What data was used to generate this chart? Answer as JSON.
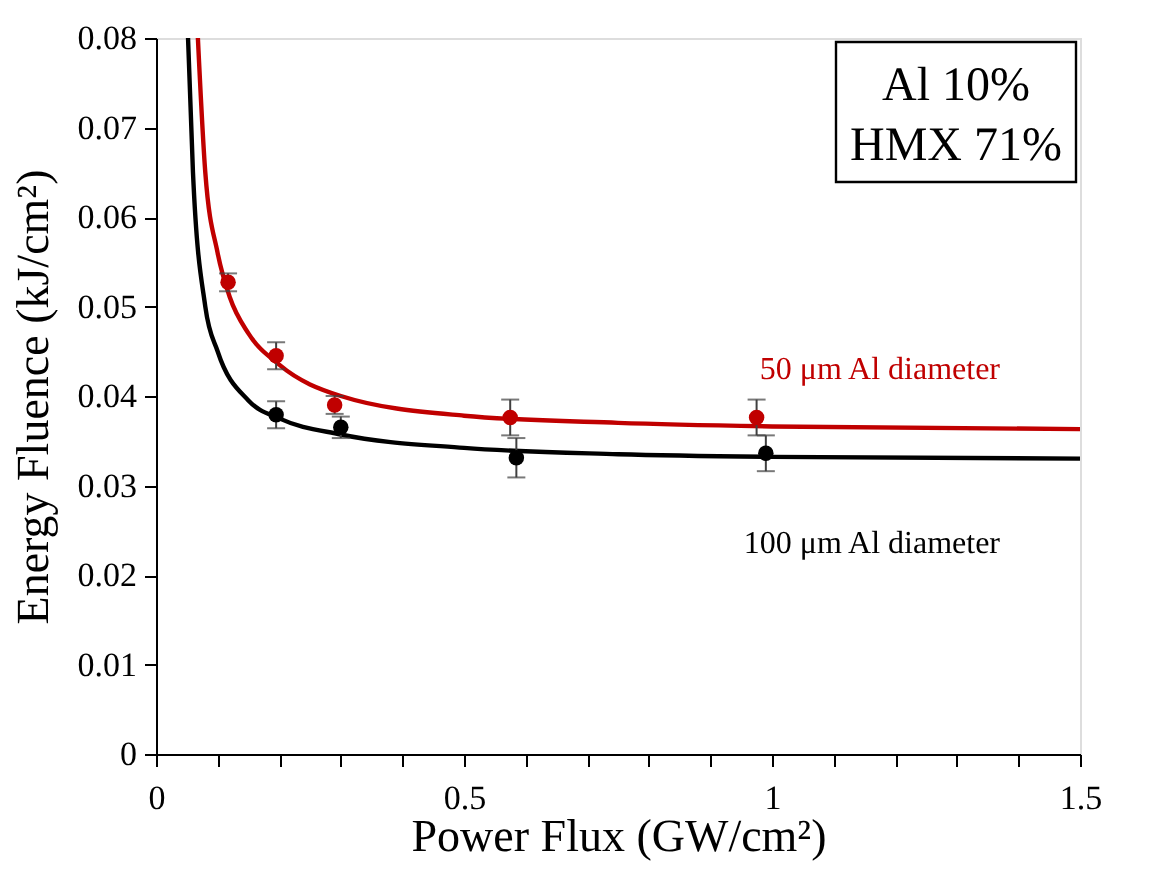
{
  "chart_data": {
    "type": "scatter",
    "xlabel": "Power Flux (GW/cm²)",
    "ylabel": "Energy Fluence (kJ/cm²)",
    "annotations": [
      "Al 10%",
      "HMX 71%"
    ],
    "xlim": [
      0,
      1.5
    ],
    "ylim": [
      0,
      0.08
    ],
    "xticks": [
      0,
      {
        "value": 0.1,
        "label": null
      },
      {
        "value": 0.2,
        "label": null
      },
      {
        "value": 0.3,
        "label": null
      },
      {
        "value": 0.4,
        "label": null
      },
      0.5,
      {
        "value": 0.6,
        "label": null
      },
      {
        "value": 0.7,
        "label": null
      },
      {
        "value": 0.8,
        "label": null
      },
      {
        "value": 0.9,
        "label": null
      },
      1,
      {
        "value": 1.1,
        "label": null
      },
      {
        "value": 1.2,
        "label": null
      },
      {
        "value": 1.3,
        "label": null
      },
      {
        "value": 1.4,
        "label": null
      },
      1.5
    ],
    "yticks": [
      0,
      0.01,
      0.02,
      0.03,
      0.04,
      0.05,
      0.06,
      0.07,
      0.08
    ],
    "grid": false,
    "series": [
      {
        "type": "line",
        "name": "50 μm Al diameter",
        "color": "#c00000",
        "x": [
          0.068,
          0.08,
          0.1,
          0.12,
          0.15,
          0.2,
          0.3,
          0.5,
          0.75,
          1.0,
          1.5
        ],
        "values": [
          0.08,
          0.065,
          0.056,
          0.051,
          0.047,
          0.0435,
          0.04,
          0.0378,
          0.037,
          0.0366,
          0.0363
        ]
      },
      {
        "type": "line",
        "name": "100 μm Al diameter",
        "color": "#000000",
        "x": [
          0.052,
          0.06,
          0.08,
          0.1,
          0.15,
          0.2,
          0.3,
          0.5,
          0.75,
          1.0,
          1.5
        ],
        "values": [
          0.08,
          0.065,
          0.05,
          0.045,
          0.0395,
          0.0375,
          0.0357,
          0.0342,
          0.0335,
          0.0332,
          0.033
        ]
      },
      {
        "marker": "circle",
        "color": "#c00000",
        "x": [
          0.117,
          0.195,
          0.29,
          0.575,
          0.975
        ],
        "values": [
          0.0527,
          0.0445,
          0.039,
          0.0376,
          0.0376
        ],
        "errors": [
          0.001,
          0.0015,
          0.001,
          0.002,
          0.002
        ]
      },
      {
        "marker": "circle",
        "color": "#000000",
        "x": [
          0.195,
          0.3,
          0.585,
          0.99
        ],
        "values": [
          0.0379,
          0.0365,
          0.0331,
          0.0336
        ],
        "errors": [
          0.0015,
          0.0012,
          0.0022,
          0.002
        ]
      }
    ]
  }
}
